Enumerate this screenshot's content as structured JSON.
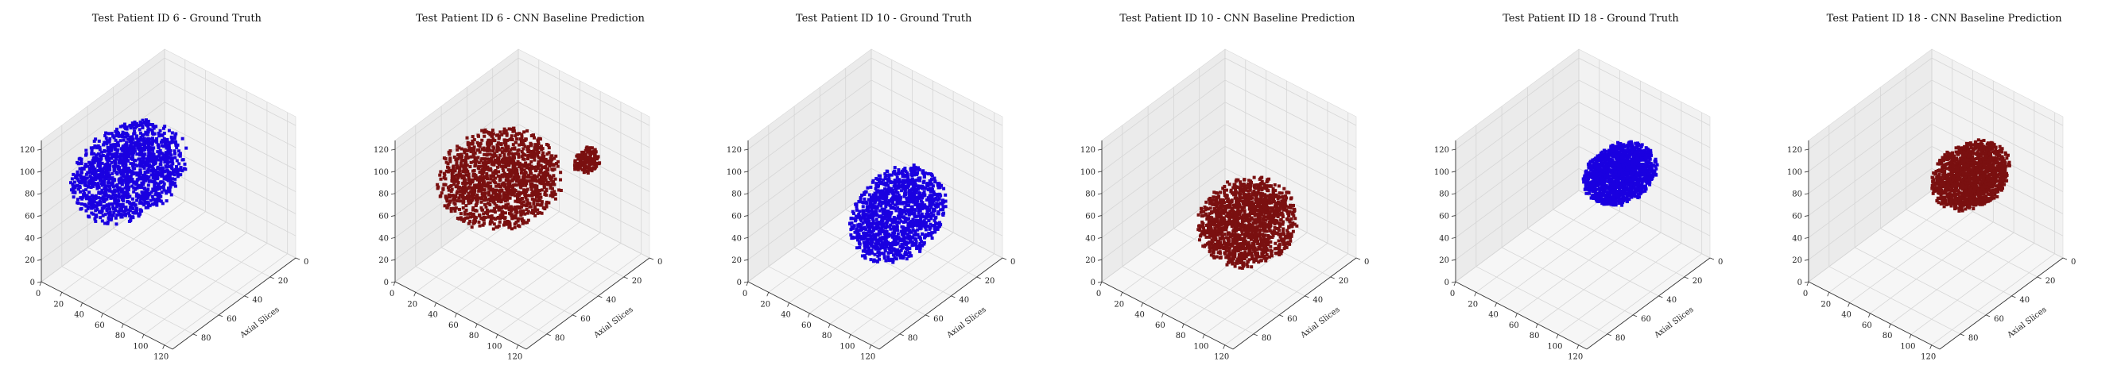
{
  "chart_data": [
    {
      "type": "scatter3d",
      "title": "Test Patient ID 6 - Ground Truth",
      "xlabel": "",
      "ylabel": "Axial Slices",
      "zlabel": "",
      "xticks": [
        0,
        20,
        40,
        60,
        80,
        100,
        120
      ],
      "yticks": [
        0,
        20,
        40,
        60,
        80
      ],
      "zticks": [
        0,
        20,
        40,
        60,
        80,
        100,
        120
      ],
      "xlim": [
        0,
        128
      ],
      "ylim": [
        0,
        96
      ],
      "zlim": [
        0,
        128
      ],
      "color": "#1a00e0",
      "volume": {
        "center": [
          25,
          48,
          70
        ],
        "radius": [
          36,
          36,
          32
        ],
        "holes": []
      }
    },
    {
      "type": "scatter3d",
      "title": "Test Patient ID 6 - CNN Baseline Prediction",
      "xlabel": "",
      "ylabel": "Axial Slices",
      "zlabel": "",
      "xticks": [
        0,
        20,
        40,
        60,
        80,
        100,
        120
      ],
      "yticks": [
        0,
        20,
        40,
        60,
        80
      ],
      "zticks": [
        0,
        20,
        40,
        60,
        80,
        100,
        120
      ],
      "xlim": [
        0,
        128
      ],
      "ylim": [
        0,
        96
      ],
      "zlim": [
        0,
        128
      ],
      "color": "#7a1010",
      "volume": {
        "center": [
          45,
          50,
          75
        ],
        "radius": [
          46,
          34,
          30
        ],
        "holes": [
          [
            52,
            40,
            38,
            7
          ]
        ]
      },
      "extra_blob": {
        "center": [
          92,
          20,
          88
        ],
        "radius": [
          9,
          9,
          10
        ]
      }
    },
    {
      "type": "scatter3d",
      "title": "Test Patient ID 10 - Ground Truth",
      "xlabel": "",
      "ylabel": "Axial Slices",
      "zlabel": "",
      "xticks": [
        0,
        20,
        40,
        60,
        80,
        100,
        120
      ],
      "yticks": [
        0,
        20,
        40,
        60,
        80
      ],
      "zticks": [
        0,
        20,
        40,
        60,
        80,
        100,
        120
      ],
      "xlim": [
        0,
        128
      ],
      "ylim": [
        0,
        96
      ],
      "zlim": [
        0,
        128
      ],
      "color": "#1a00e0",
      "volume": {
        "center": [
          70,
          35,
          42
        ],
        "radius": [
          30,
          30,
          34
        ],
        "holes": [
          [
            70,
            35,
            42,
            14
          ]
        ]
      }
    },
    {
      "type": "scatter3d",
      "title": "Test Patient ID 10 - CNN Baseline Prediction",
      "xlabel": "",
      "ylabel": "Axial Slices",
      "zlabel": "",
      "xticks": [
        0,
        20,
        40,
        60,
        80,
        100,
        120
      ],
      "yticks": [
        0,
        20,
        40,
        60,
        80
      ],
      "zticks": [
        0,
        20,
        40,
        60,
        80,
        100,
        120
      ],
      "xlim": [
        0,
        128
      ],
      "ylim": [
        0,
        96
      ],
      "zlim": [
        0,
        128
      ],
      "color": "#7a1010",
      "volume": {
        "center": [
          72,
          40,
          40
        ],
        "radius": [
          36,
          28,
          30
        ],
        "holes": []
      }
    },
    {
      "type": "scatter3d",
      "title": "Test Patient ID 18 - Ground Truth",
      "xlabel": "",
      "ylabel": "Axial Slices",
      "zlabel": "",
      "xticks": [
        0,
        20,
        40,
        60,
        80,
        100,
        120
      ],
      "yticks": [
        0,
        20,
        40,
        60,
        80
      ],
      "zticks": [
        0,
        20,
        40,
        60,
        80,
        100,
        120
      ],
      "xlim": [
        0,
        128
      ],
      "ylim": [
        0,
        96
      ],
      "zlim": [
        0,
        128
      ],
      "color": "#1a00e0",
      "volume": {
        "center": [
          78,
          30,
          78
        ],
        "radius": [
          24,
          22,
          20
        ],
        "holes": []
      }
    },
    {
      "type": "scatter3d",
      "title": "Test Patient ID 18 - CNN Baseline Prediction",
      "xlabel": "",
      "ylabel": "Axial Slices",
      "zlabel": "",
      "xticks": [
        0,
        20,
        40,
        60,
        80,
        100,
        120
      ],
      "yticks": [
        0,
        20,
        40,
        60,
        80
      ],
      "zticks": [
        0,
        20,
        40,
        60,
        80,
        100,
        120
      ],
      "xlim": [
        0,
        128
      ],
      "ylim": [
        0,
        96
      ],
      "zlim": [
        0,
        128
      ],
      "color": "#7a1010",
      "volume": {
        "center": [
          78,
          32,
          78
        ],
        "radius": [
          26,
          24,
          22
        ],
        "holes": []
      }
    }
  ]
}
